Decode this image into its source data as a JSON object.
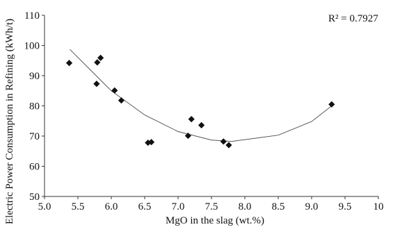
{
  "chart_data": {
    "type": "scatter",
    "title": "",
    "xlabel": "MgO in the slag (wt.%)",
    "ylabel": "Electric Power Consumption in Refining (kWh/t)",
    "xlim": [
      5.0,
      10.0
    ],
    "ylim": [
      50,
      110
    ],
    "x_ticks": [
      5.0,
      5.5,
      6.0,
      6.5,
      7.0,
      7.5,
      8.0,
      8.5,
      9.0,
      9.5,
      10.0
    ],
    "x_tick_labels": [
      "5.0",
      "5.5",
      "6.0",
      "6.5",
      "7.0",
      "7.5",
      "8.0",
      "8.5",
      "9.0",
      "9.5",
      "10"
    ],
    "y_ticks": [
      50,
      60,
      70,
      80,
      90,
      100,
      110
    ],
    "y_tick_labels": [
      "50",
      "60",
      "70",
      "80",
      "90",
      "100",
      "110"
    ],
    "grid": false,
    "legend": "none",
    "annotation": "R² = 0.7927",
    "marker": "diamond",
    "marker_color": "#111111",
    "trendline": {
      "type": "polynomial-2",
      "x_range": [
        5.38,
        9.3
      ],
      "points": [
        [
          5.38,
          98.7
        ],
        [
          6.0,
          85.0
        ],
        [
          6.5,
          77.0
        ],
        [
          7.0,
          71.5
        ],
        [
          7.5,
          68.7
        ],
        [
          7.8,
          68.2
        ],
        [
          8.5,
          70.3
        ],
        [
          9.0,
          74.8
        ],
        [
          9.3,
          80.0
        ]
      ]
    },
    "series": [
      {
        "points": [
          [
            5.37,
            94.2
          ],
          [
            5.78,
            87.3
          ],
          [
            5.79,
            94.4
          ],
          [
            5.84,
            95.9
          ],
          [
            6.05,
            85.1
          ],
          [
            6.15,
            81.8
          ],
          [
            6.55,
            67.8
          ],
          [
            6.6,
            68.0
          ],
          [
            7.15,
            70.1
          ],
          [
            7.2,
            75.6
          ],
          [
            7.35,
            73.6
          ],
          [
            7.68,
            68.2
          ],
          [
            7.76,
            67.0
          ],
          [
            9.3,
            80.5
          ]
        ]
      }
    ]
  }
}
